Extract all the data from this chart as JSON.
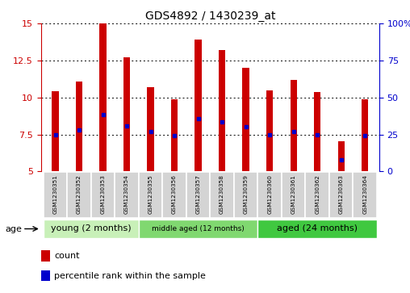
{
  "title": "GDS4892 / 1430239_at",
  "samples": [
    "GSM1230351",
    "GSM1230352",
    "GSM1230353",
    "GSM1230354",
    "GSM1230355",
    "GSM1230356",
    "GSM1230357",
    "GSM1230358",
    "GSM1230359",
    "GSM1230360",
    "GSM1230361",
    "GSM1230362",
    "GSM1230363",
    "GSM1230364"
  ],
  "bar_heights": [
    10.4,
    11.1,
    15.0,
    12.7,
    10.7,
    9.85,
    13.9,
    13.2,
    12.0,
    10.5,
    11.2,
    10.35,
    7.05,
    9.9
  ],
  "bar_base": 5.0,
  "blue_dots": [
    7.5,
    7.8,
    8.85,
    8.05,
    7.7,
    7.4,
    8.55,
    8.35,
    8.0,
    7.5,
    7.7,
    7.5,
    5.8,
    7.4
  ],
  "ylim_left": [
    5,
    15
  ],
  "ylim_right": [
    0,
    100
  ],
  "yticks_left": [
    5,
    7.5,
    10,
    12.5,
    15
  ],
  "yticks_right": [
    0,
    25,
    50,
    75,
    100
  ],
  "groups": [
    {
      "label": "young (2 months)",
      "start": 0,
      "end": 4,
      "color": "#c8f0b8"
    },
    {
      "label": "middle aged (12 months)",
      "start": 4,
      "end": 9,
      "color": "#80d870"
    },
    {
      "label": "aged (24 months)",
      "start": 9,
      "end": 14,
      "color": "#40c840"
    }
  ],
  "bar_color": "#cc0000",
  "dot_color": "#0000cc",
  "grid_color": "#000000",
  "bg_color": "#ffffff",
  "title_color": "#000000",
  "left_axis_color": "#cc0000",
  "right_axis_color": "#0000cc",
  "legend_red_label": "count",
  "legend_blue_label": "percentile rank within the sample",
  "age_label": "age",
  "ytick_labels_left": [
    "5",
    "7.5",
    "10",
    "12.5",
    "15"
  ],
  "ytick_labels_right": [
    "0",
    "25",
    "50",
    "75",
    "100%"
  ]
}
